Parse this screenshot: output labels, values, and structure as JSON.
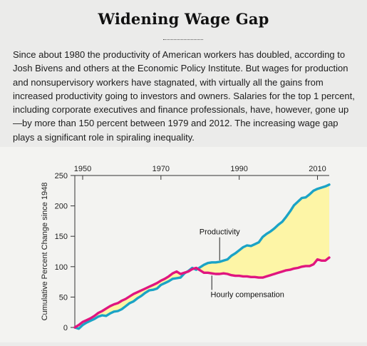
{
  "header": {
    "title": "Widening Wage Gap",
    "intro": "Since about 1980 the productivity of American workers has doubled, according to Josh Bivens and others at the Economic Policy Institute. But wages for production and nonsupervisory workers have stagnated, with virtually all the gains from increased productivity going to investors and owners. Salaries for the top 1 percent, including corporate executives and finance professionals, have, however, gone up—by more than 150 percent between 1979 and 2012. The increasing wage gap plays a significant role in spiraling inequality."
  },
  "colors": {
    "productivity": "#1ba3c6",
    "compensation": "#e0157f",
    "gap_fill": "#fdf5a6",
    "axis": "#333333"
  },
  "chart_data": {
    "type": "line",
    "title": "",
    "xlabel": "",
    "ylabel": "Cumulative Percent Change since 1948",
    "xlim": [
      1948,
      2013
    ],
    "ylim": [
      0,
      250
    ],
    "x_ticks": [
      "1950",
      "1970",
      "1990",
      "2010"
    ],
    "x_tick_values": [
      1950,
      1970,
      1990,
      2010
    ],
    "y_ticks": [
      "0",
      "50",
      "100",
      "150",
      "200",
      "250"
    ],
    "y_tick_values": [
      0,
      50,
      100,
      150,
      200,
      250
    ],
    "x_axis_position": "top",
    "grid": false,
    "shaded_gap": true,
    "x": [
      1948,
      1949,
      1950,
      1951,
      1952,
      1953,
      1954,
      1955,
      1956,
      1957,
      1958,
      1959,
      1960,
      1961,
      1962,
      1963,
      1964,
      1965,
      1966,
      1967,
      1968,
      1969,
      1970,
      1971,
      1972,
      1973,
      1974,
      1975,
      1976,
      1977,
      1978,
      1979,
      1980,
      1981,
      1982,
      1983,
      1984,
      1985,
      1986,
      1987,
      1988,
      1989,
      1990,
      1991,
      1992,
      1993,
      1994,
      1995,
      1996,
      1997,
      1998,
      1999,
      2000,
      2001,
      2002,
      2003,
      2004,
      2005,
      2006,
      2007,
      2008,
      2009,
      2010,
      2011,
      2012,
      2013
    ],
    "series": [
      {
        "name": "Productivity",
        "values": [
          0,
          -2,
          4,
          8,
          11,
          14,
          18,
          20,
          19,
          23,
          26,
          27,
          30,
          35,
          40,
          43,
          48,
          52,
          57,
          61,
          62,
          64,
          70,
          73,
          76,
          80,
          81,
          82,
          89,
          93,
          98,
          95,
          99,
          103,
          106,
          107,
          107,
          108,
          110,
          112,
          118,
          122,
          127,
          132,
          135,
          134,
          137,
          140,
          149,
          154,
          158,
          163,
          169,
          174,
          182,
          191,
          201,
          207,
          213,
          214,
          219,
          225,
          228,
          230,
          232,
          235
        ]
      },
      {
        "name": "Hourly compensation",
        "values": [
          0,
          4,
          9,
          12,
          15,
          19,
          24,
          27,
          31,
          35,
          38,
          40,
          44,
          47,
          51,
          55,
          58,
          61,
          64,
          67,
          70,
          73,
          77,
          80,
          84,
          89,
          92,
          88,
          90,
          92,
          96,
          98,
          94,
          90,
          90,
          89,
          88,
          88,
          89,
          88,
          86,
          85,
          85,
          84,
          84,
          83,
          83,
          82,
          82,
          84,
          86,
          88,
          90,
          92,
          94,
          95,
          97,
          98,
          100,
          101,
          101,
          104,
          112,
          110,
          110,
          115
        ]
      }
    ],
    "annotations": [
      {
        "text": "Productivity",
        "series": "Productivity"
      },
      {
        "text": "Hourly compensation",
        "series": "Hourly compensation"
      }
    ]
  }
}
